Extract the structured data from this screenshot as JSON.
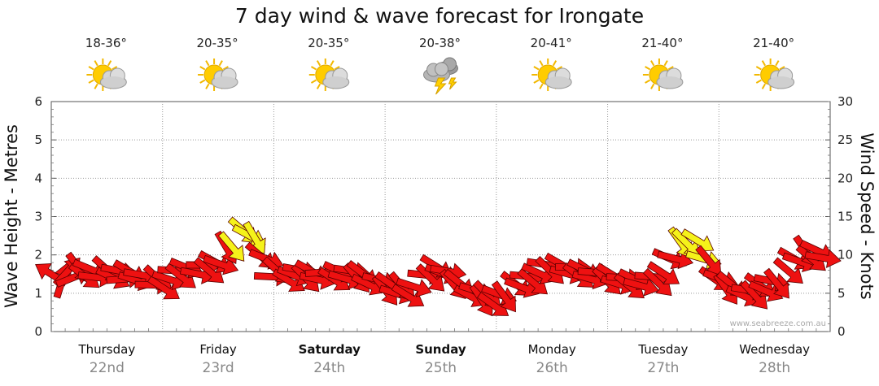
{
  "chart_data": {
    "type": "line",
    "title": "7 day wind & wave forecast for Irongate",
    "ylabel_left": "Wave Height - Metres",
    "ylabel_right": "Wind Speed - Knots",
    "ylim_left": [
      0,
      6
    ],
    "ylim_right": [
      0,
      30
    ],
    "yticks_left": [
      "0",
      "1",
      "2",
      "3",
      "4",
      "5",
      "6"
    ],
    "yticks_right": [
      "0",
      "5",
      "10",
      "15",
      "20",
      "25",
      "30"
    ],
    "credit": "www.seabreeze.com.au",
    "days": [
      {
        "name": "Thursday",
        "date": "22nd",
        "temp": "18-36°",
        "weather": "partly-cloudy",
        "bold": false
      },
      {
        "name": "Friday",
        "date": "23rd",
        "temp": "20-35°",
        "weather": "partly-cloudy",
        "bold": false
      },
      {
        "name": "Saturday",
        "date": "24th",
        "temp": "20-35°",
        "weather": "partly-cloudy",
        "bold": true
      },
      {
        "name": "Sunday",
        "date": "25th",
        "temp": "20-38°",
        "weather": "storm",
        "bold": true
      },
      {
        "name": "Monday",
        "date": "26th",
        "temp": "20-41°",
        "weather": "partly-cloudy",
        "bold": false
      },
      {
        "name": "Tuesday",
        "date": "27th",
        "temp": "21-40°",
        "weather": "partly-cloudy",
        "bold": false
      },
      {
        "name": "Wednesday",
        "date": "28th",
        "temp": "21-40°",
        "weather": "partly-cloudy",
        "bold": false
      }
    ],
    "series": [
      {
        "name": "Wind Speed (knots)",
        "x_days": [
          0,
          0.25,
          0.5,
          0.75,
          1,
          1.25,
          1.5,
          1.75,
          2,
          2.25,
          2.5,
          2.75,
          3,
          3.25,
          3.5,
          3.75,
          4,
          4.25,
          4.5,
          4.75,
          5,
          5.25,
          5.5,
          5.75,
          6,
          6.25,
          6.5,
          6.75,
          7
        ],
        "values": [
          6.5,
          7.5,
          7.5,
          7.5,
          6.5,
          7.5,
          8.5,
          13.5,
          8,
          7,
          7,
          7.5,
          6,
          5.5,
          8,
          5,
          4,
          7,
          8,
          7.5,
          7,
          6.5,
          7.5,
          12,
          6.5,
          5,
          6.5,
          9.5,
          10
        ],
        "colors": [
          "red",
          "red",
          "red",
          "red",
          "red",
          "red",
          "red",
          "yellow",
          "red",
          "red",
          "red",
          "red",
          "red",
          "red",
          "red",
          "red",
          "red",
          "red",
          "red",
          "red",
          "red",
          "red",
          "red",
          "yellow",
          "red",
          "red",
          "red",
          "red",
          "red"
        ],
        "directions_deg": [
          45,
          210,
          200,
          190,
          210,
          200,
          210,
          225,
          200,
          210,
          195,
          215,
          220,
          200,
          205,
          215,
          225,
          210,
          200,
          195,
          205,
          200,
          210,
          225,
          215,
          205,
          210,
          220,
          210
        ]
      }
    ]
  }
}
